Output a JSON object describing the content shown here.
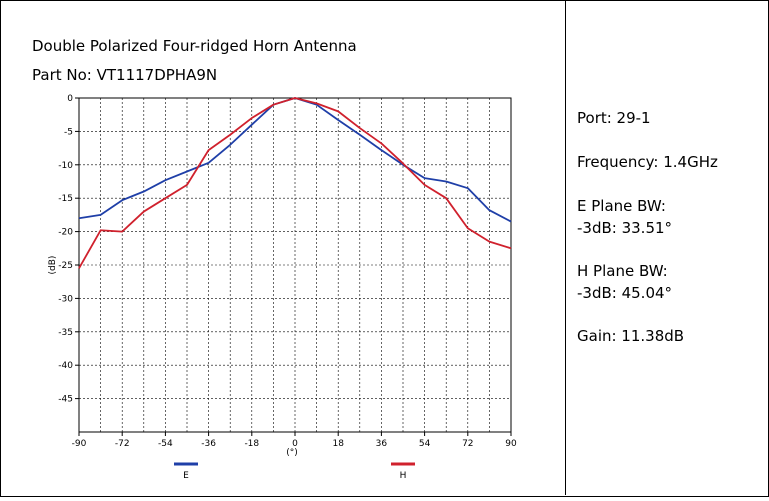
{
  "header": {
    "title": "Double Polarized Four-ridged Horn Antenna",
    "part_no": "Part No: VT1117DPHA9N"
  },
  "info": [
    "Port: 29-1",
    "Frequency: 1.4GHz",
    "E Plane BW:",
    "-3dB: 33.51°",
    "H Plane BW:",
    "-3dB: 45.04°",
    "Gain: 11.38dB"
  ],
  "chart_data": {
    "type": "line",
    "x_label": "(°)",
    "y_label": "(dB)",
    "x": [
      -90,
      -81,
      -72,
      -63,
      -54,
      -45,
      -36,
      -27,
      -18,
      -9,
      0,
      9,
      18,
      27,
      36,
      45,
      54,
      63,
      72,
      81,
      90
    ],
    "series": [
      {
        "name": "E",
        "color": "#1f3fa8",
        "values": [
          -18,
          -17.5,
          -15.3,
          -14,
          -12.3,
          -11,
          -9.7,
          -7,
          -4,
          -1,
          0,
          -1,
          -3.3,
          -5.5,
          -7.8,
          -10,
          -12,
          -12.5,
          -13.5,
          -16.8,
          -18.5
        ]
      },
      {
        "name": "H",
        "color": "#d0212d",
        "values": [
          -25.5,
          -19.8,
          -20,
          -17,
          -15,
          -13,
          -7.8,
          -5.5,
          -3,
          -1,
          0,
          -0.8,
          -2,
          -4.5,
          -6.8,
          -9.8,
          -13,
          -15,
          -19.5,
          -21.5,
          -22.5
        ]
      }
    ],
    "xlim": [
      -90,
      90
    ],
    "ylim": [
      -50,
      0
    ],
    "xticks": [
      -90,
      -72,
      -54,
      -36,
      -18,
      0,
      18,
      36,
      54,
      72,
      90
    ],
    "yticks": [
      0,
      -5,
      -10,
      -15,
      -20,
      -25,
      -30,
      -35,
      -40,
      -45
    ],
    "grid": true
  }
}
